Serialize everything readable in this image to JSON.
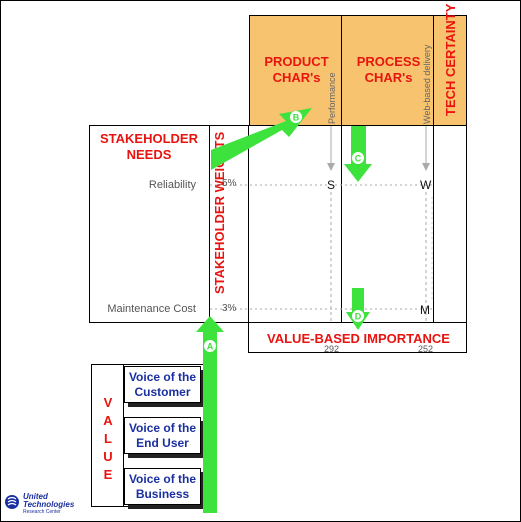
{
  "headers": {
    "product_chars": [
      "PRODUCT",
      "CHAR's"
    ],
    "process_chars": [
      "PROCESS",
      "CHAR's"
    ],
    "tech_certainty": "TECH CERTAINTY",
    "stakeholder_needs": [
      "STAKEHOLDER",
      "NEEDS"
    ],
    "stakeholder_weights": "STAKEHOLDER WEIGHTS",
    "value_based_importance": "VALUE-BASED IMPORTANCE"
  },
  "column_labels": {
    "performance": "Performance",
    "web_delivery": "Web-based delivery"
  },
  "rows": [
    {
      "label": "Reliability",
      "weight": "5%",
      "performance_rel": "S",
      "web_rel": "W"
    },
    {
      "label": "Maintenance Cost",
      "weight": "3%",
      "performance_rel": "",
      "web_rel": "M"
    }
  ],
  "importance_values": [
    "292",
    "252"
  ],
  "arrows": [
    "A",
    "B",
    "C",
    "D"
  ],
  "value_letters": [
    "V",
    "A",
    "L",
    "U",
    "E"
  ],
  "voices": [
    [
      "Voice of the",
      "Customer"
    ],
    [
      "Voice of the",
      "End User"
    ],
    [
      "Voice of the",
      "Business"
    ]
  ],
  "logo": {
    "line1": "United",
    "line2": "Technologies",
    "line3": "Research Center"
  },
  "colors": {
    "orange": "#f8c36e",
    "red": "#e8140f",
    "green": "#3ee23c",
    "blue_text": "#1a2fa0"
  }
}
